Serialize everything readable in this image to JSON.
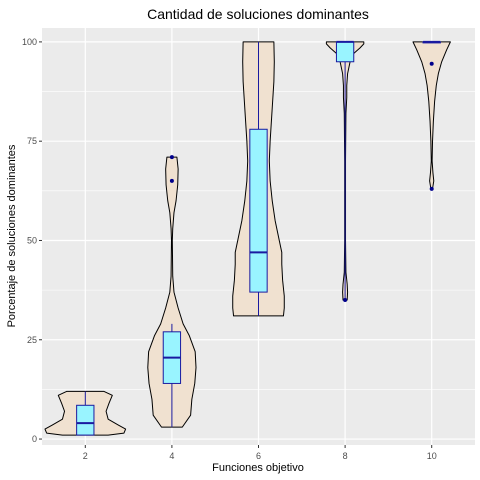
{
  "chart_data": {
    "type": "violin",
    "title": "Cantidad de soluciones dominantes",
    "xlabel": "Funciones objetivo",
    "ylabel": "Porcentaje de soluciones dominantes",
    "categories": [
      "2",
      "4",
      "6",
      "8",
      "10"
    ],
    "yticks": [
      0,
      25,
      50,
      75,
      100
    ],
    "ylim": [
      -1.5,
      103.5
    ],
    "grid": true,
    "legend": "none",
    "colors": {
      "panel": "#ebebeb",
      "grid": "#ffffff",
      "violin_fill": "#f0e1d0",
      "violin_stroke": "#000000",
      "box_fill": "#99f4ff",
      "box_stroke": "#1a1aa0",
      "outlier": "#00008b"
    },
    "groups": [
      {
        "category": "2",
        "box": {
          "min": 1,
          "q1": 1,
          "median": 4,
          "q3": 8.5,
          "max": 12
        },
        "outliers": [],
        "violin": [
          [
            1,
            0.55
          ],
          [
            1.5,
            0.93
          ],
          [
            2.5,
            0.97
          ],
          [
            3.5,
            0.8
          ],
          [
            5,
            0.55
          ],
          [
            7,
            0.5
          ],
          [
            9,
            0.57
          ],
          [
            11,
            0.65
          ],
          [
            12,
            0.45
          ]
        ]
      },
      {
        "category": "4",
        "box": {
          "min": 3,
          "q1": 14,
          "median": 20.5,
          "q3": 27,
          "max": 29
        },
        "outliers": [
          65,
          71
        ],
        "violin": [
          [
            3,
            0.25
          ],
          [
            6,
            0.45
          ],
          [
            10,
            0.48
          ],
          [
            14,
            0.55
          ],
          [
            18,
            0.58
          ],
          [
            22,
            0.56
          ],
          [
            26,
            0.42
          ],
          [
            29,
            0.27
          ],
          [
            33,
            0.15
          ],
          [
            37,
            0.05
          ],
          [
            41,
            0.02
          ],
          [
            50,
            0.01
          ],
          [
            53,
            0.02
          ],
          [
            57,
            0.05
          ],
          [
            60,
            0.1
          ],
          [
            64,
            0.14
          ],
          [
            68,
            0.15
          ],
          [
            71,
            0.12
          ]
        ]
      },
      {
        "category": "6",
        "box": {
          "min": 31,
          "q1": 37,
          "median": 47,
          "q3": 78,
          "max": 100
        },
        "outliers": [],
        "violin": [
          [
            31,
            0.6
          ],
          [
            33,
            0.62
          ],
          [
            36,
            0.62
          ],
          [
            40,
            0.58
          ],
          [
            44,
            0.56
          ],
          [
            47,
            0.56
          ],
          [
            50,
            0.5
          ],
          [
            55,
            0.4
          ],
          [
            60,
            0.33
          ],
          [
            65,
            0.28
          ],
          [
            70,
            0.26
          ],
          [
            75,
            0.28
          ],
          [
            80,
            0.31
          ],
          [
            85,
            0.34
          ],
          [
            90,
            0.37
          ],
          [
            95,
            0.38
          ],
          [
            100,
            0.37
          ]
        ]
      },
      {
        "category": "8",
        "box": {
          "min": 35,
          "q1": 95,
          "median": 100,
          "q3": 100,
          "max": 100
        },
        "outliers": [
          35
        ],
        "violin": [
          [
            35,
            0.05
          ],
          [
            37,
            0.06
          ],
          [
            39,
            0.05
          ],
          [
            42,
            0.02
          ],
          [
            50,
            0.01
          ],
          [
            70,
            0.01
          ],
          [
            82,
            0.02
          ],
          [
            86,
            0.04
          ],
          [
            89,
            0.04
          ],
          [
            92,
            0.06
          ],
          [
            95,
            0.12
          ],
          [
            97,
            0.2
          ],
          [
            98.5,
            0.36
          ],
          [
            99.5,
            0.45
          ],
          [
            100,
            0.45
          ]
        ]
      },
      {
        "category": "10",
        "box": {
          "min": 100,
          "q1": 100,
          "median": 100,
          "q3": 100,
          "max": 100
        },
        "outliers": [
          63
        ],
        "mean_dot": 94.5,
        "violin": [
          [
            63,
            0.02
          ],
          [
            65,
            0.05
          ],
          [
            67,
            0.03
          ],
          [
            70,
            0.01
          ],
          [
            75,
            0.02
          ],
          [
            80,
            0.04
          ],
          [
            85,
            0.07
          ],
          [
            89,
            0.11
          ],
          [
            92,
            0.16
          ],
          [
            95,
            0.24
          ],
          [
            98,
            0.36
          ],
          [
            100,
            0.45
          ]
        ]
      }
    ]
  }
}
